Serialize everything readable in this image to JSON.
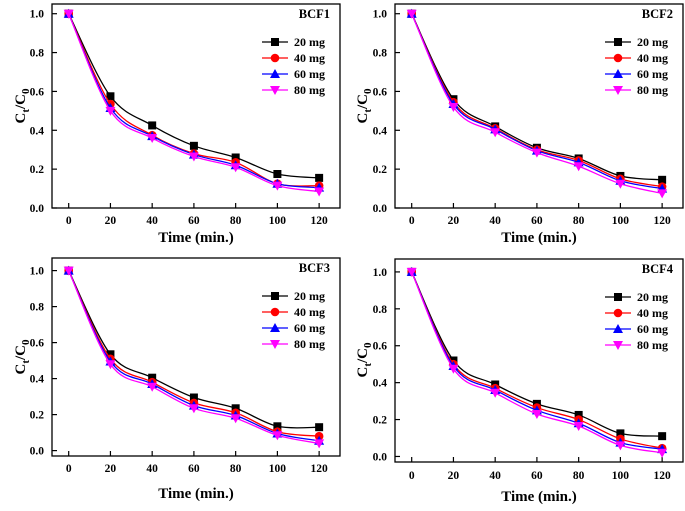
{
  "figure": {
    "marker_colors": [
      "#000000",
      "#ff0000",
      "#0000ff",
      "#ff00ff"
    ],
    "marker_shapes": [
      "square",
      "circle",
      "triangle-up",
      "triangle-down"
    ]
  },
  "chart_data": [
    {
      "type": "line",
      "title": "BCF1",
      "xlabel": "Time (min.)",
      "ylabel": "Ct/C0",
      "ylabel_main": "C",
      "ylabel_sub1": "t",
      "ylabel_slash": "/C",
      "ylabel_sub2": "0",
      "xlim": [
        -8,
        130
      ],
      "ylim": [
        0,
        1.05
      ],
      "xticks": [
        0,
        20,
        40,
        60,
        80,
        100,
        120
      ],
      "yticks": [
        0.0,
        0.2,
        0.4,
        0.6,
        0.8,
        1.0
      ],
      "ytick_labels": [
        "0.0",
        "0.2",
        "0.4",
        "0.6",
        "0.8",
        "1.0"
      ],
      "x": [
        0,
        20,
        40,
        60,
        80,
        100,
        120
      ],
      "series": [
        {
          "name": "20 mg",
          "color": "#000000",
          "marker": "square",
          "values": [
            1.0,
            0.575,
            0.425,
            0.32,
            0.26,
            0.175,
            0.155
          ]
        },
        {
          "name": "40 mg",
          "color": "#ff0000",
          "marker": "circle",
          "values": [
            1.0,
            0.535,
            0.375,
            0.28,
            0.235,
            0.125,
            0.115
          ]
        },
        {
          "name": "60 mg",
          "color": "#0000ff",
          "marker": "triangle-up",
          "values": [
            1.0,
            0.515,
            0.37,
            0.275,
            0.22,
            0.125,
            0.105
          ]
        },
        {
          "name": "80 mg",
          "color": "#ff00ff",
          "marker": "triangle-down",
          "values": [
            1.0,
            0.5,
            0.36,
            0.265,
            0.21,
            0.115,
            0.085
          ]
        }
      ]
    },
    {
      "type": "line",
      "title": "BCF2",
      "xlabel": "Time (min.)",
      "ylabel": "Ct/C0",
      "ylabel_main": "C",
      "ylabel_sub1": "t",
      "ylabel_slash": "/C",
      "ylabel_sub2": "0",
      "xlim": [
        -8,
        130
      ],
      "ylim": [
        0,
        1.05
      ],
      "xticks": [
        0,
        20,
        40,
        60,
        80,
        100,
        120
      ],
      "yticks": [
        0.0,
        0.2,
        0.4,
        0.6,
        0.8,
        1.0
      ],
      "ytick_labels": [
        "0.0",
        "0.2",
        "0.4",
        "0.6",
        "0.8",
        "1.0"
      ],
      "x": [
        0,
        20,
        40,
        60,
        80,
        100,
        120
      ],
      "series": [
        {
          "name": "20 mg",
          "color": "#000000",
          "marker": "square",
          "values": [
            1.0,
            0.56,
            0.42,
            0.31,
            0.255,
            0.165,
            0.145
          ]
        },
        {
          "name": "40 mg",
          "color": "#ff0000",
          "marker": "circle",
          "values": [
            1.0,
            0.545,
            0.41,
            0.3,
            0.245,
            0.15,
            0.11
          ]
        },
        {
          "name": "60 mg",
          "color": "#0000ff",
          "marker": "triangle-up",
          "values": [
            1.0,
            0.535,
            0.405,
            0.295,
            0.235,
            0.14,
            0.1
          ]
        },
        {
          "name": "80 mg",
          "color": "#ff00ff",
          "marker": "triangle-down",
          "values": [
            1.0,
            0.52,
            0.39,
            0.285,
            0.215,
            0.125,
            0.075
          ]
        }
      ]
    },
    {
      "type": "line",
      "title": "BCF3",
      "xlabel": "Time (min.)",
      "ylabel": "Ct/C0",
      "ylabel_main": "C",
      "ylabel_sub1": "t",
      "ylabel_slash": "/C",
      "ylabel_sub2": "0",
      "xlim": [
        -8,
        130
      ],
      "ylim": [
        -0.03,
        1.07
      ],
      "xticks": [
        0,
        20,
        40,
        60,
        80,
        100,
        120
      ],
      "yticks": [
        0.0,
        0.2,
        0.4,
        0.6,
        0.8,
        1.0
      ],
      "ytick_labels": [
        "0.0",
        "0.2",
        "0.4",
        "0.6",
        "0.8",
        "1.0"
      ],
      "x": [
        0,
        20,
        40,
        60,
        80,
        100,
        120
      ],
      "series": [
        {
          "name": "20 mg",
          "color": "#000000",
          "marker": "square",
          "values": [
            1.0,
            0.535,
            0.405,
            0.295,
            0.235,
            0.135,
            0.13
          ]
        },
        {
          "name": "40 mg",
          "color": "#ff0000",
          "marker": "circle",
          "values": [
            1.0,
            0.51,
            0.38,
            0.265,
            0.21,
            0.105,
            0.08
          ]
        },
        {
          "name": "60 mg",
          "color": "#0000ff",
          "marker": "triangle-up",
          "values": [
            1.0,
            0.495,
            0.37,
            0.25,
            0.195,
            0.095,
            0.055
          ]
        },
        {
          "name": "80 mg",
          "color": "#ff00ff",
          "marker": "triangle-down",
          "values": [
            1.0,
            0.48,
            0.355,
            0.235,
            0.18,
            0.085,
            0.04
          ]
        }
      ]
    },
    {
      "type": "line",
      "title": "BCF4",
      "xlabel": "Time (min.)",
      "ylabel": "Ct/C0",
      "ylabel_main": "C",
      "ylabel_sub1": "t",
      "ylabel_slash": "/C",
      "ylabel_sub2": "0",
      "xlim": [
        -8,
        130
      ],
      "ylim": [
        -0.03,
        1.07
      ],
      "xticks": [
        0,
        20,
        40,
        60,
        80,
        100,
        120
      ],
      "yticks": [
        0.0,
        0.2,
        0.4,
        0.6,
        0.8,
        1.0
      ],
      "ytick_labels": [
        "0.0",
        "0.2",
        "0.4",
        "0.6",
        "0.8",
        "1.0"
      ],
      "x": [
        0,
        20,
        40,
        60,
        80,
        100,
        120
      ],
      "series": [
        {
          "name": "20 mg",
          "color": "#000000",
          "marker": "square",
          "values": [
            1.0,
            0.52,
            0.39,
            0.285,
            0.225,
            0.125,
            0.11
          ]
        },
        {
          "name": "40 mg",
          "color": "#ff0000",
          "marker": "circle",
          "values": [
            1.0,
            0.5,
            0.37,
            0.265,
            0.2,
            0.095,
            0.045
          ]
        },
        {
          "name": "60 mg",
          "color": "#0000ff",
          "marker": "triangle-up",
          "values": [
            1.0,
            0.49,
            0.36,
            0.25,
            0.18,
            0.075,
            0.04
          ]
        },
        {
          "name": "80 mg",
          "color": "#ff00ff",
          "marker": "triangle-down",
          "values": [
            1.0,
            0.475,
            0.345,
            0.23,
            0.165,
            0.06,
            0.02
          ]
        }
      ]
    }
  ]
}
